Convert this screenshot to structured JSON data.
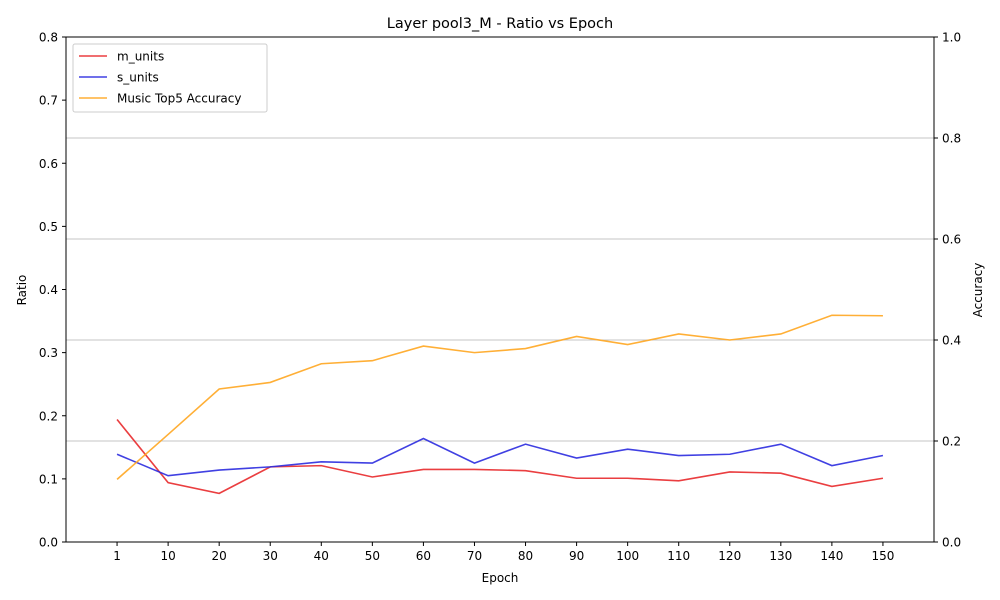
{
  "chart_data": {
    "type": "line",
    "title": "Layer pool3_M - Ratio vs Epoch",
    "xlabel": "Epoch",
    "ylabel": "Ratio",
    "y2label": "Accuracy",
    "x": [
      1,
      10,
      20,
      30,
      40,
      50,
      60,
      70,
      80,
      90,
      100,
      110,
      120,
      130,
      140,
      150
    ],
    "x_tick_labels": [
      "1",
      "10",
      "20",
      "30",
      "40",
      "50",
      "60",
      "70",
      "80",
      "90",
      "100",
      "110",
      "120",
      "130",
      "140",
      "150"
    ],
    "ylim": [
      0,
      0.8
    ],
    "y_ticks": [
      0.0,
      0.1,
      0.2,
      0.3,
      0.4,
      0.5,
      0.6,
      0.7,
      0.8
    ],
    "y_tick_labels": [
      "0.0",
      "0.1",
      "0.2",
      "0.3",
      "0.4",
      "0.5",
      "0.6",
      "0.7",
      "0.8"
    ],
    "y2lim": [
      0,
      1.0
    ],
    "y2_ticks": [
      0.0,
      0.2,
      0.4,
      0.6,
      0.8,
      1.0
    ],
    "y2_tick_labels": [
      "0.0",
      "0.2",
      "0.4",
      "0.6",
      "0.8",
      "1.0"
    ],
    "grid": "right axis horizontal",
    "legend_position": "top-left",
    "series": [
      {
        "name": "m_units",
        "axis": "left",
        "color": "#e8292b",
        "values": [
          0.194,
          0.094,
          0.077,
          0.119,
          0.121,
          0.103,
          0.115,
          0.115,
          0.113,
          0.101,
          0.101,
          0.097,
          0.111,
          0.109,
          0.088,
          0.101
        ]
      },
      {
        "name": "s_units",
        "axis": "left",
        "color": "#2b2bdf",
        "values": [
          0.139,
          0.105,
          0.114,
          0.119,
          0.127,
          0.125,
          0.164,
          0.125,
          0.155,
          0.133,
          0.147,
          0.137,
          0.139,
          0.155,
          0.121,
          0.137
        ]
      },
      {
        "name": "Music Top5 Accuracy",
        "axis": "right",
        "color": "#ffa620",
        "values": [
          0.124,
          0.213,
          0.303,
          0.316,
          0.353,
          0.359,
          0.388,
          0.375,
          0.383,
          0.407,
          0.391,
          0.412,
          0.4,
          0.412,
          0.449,
          0.448
        ]
      }
    ]
  }
}
